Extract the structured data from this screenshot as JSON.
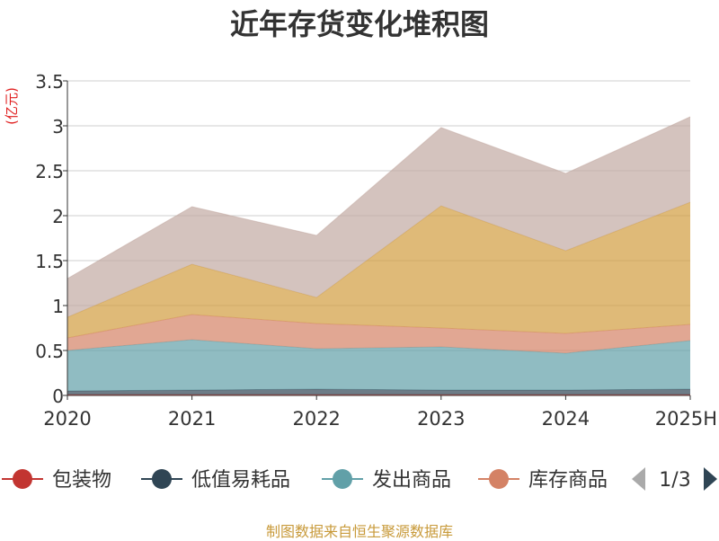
{
  "chart_data": {
    "type": "area",
    "stacked": true,
    "title": "近年存货变化堆积图",
    "unit_label": "(亿元)",
    "categories": [
      "2020",
      "2021",
      "2022",
      "2023",
      "2024",
      "2025H"
    ],
    "ylim": [
      0,
      3.5
    ],
    "yticks": [
      "0",
      "0.5",
      "1",
      "1.5",
      "2",
      "2.5",
      "3",
      "3.5"
    ],
    "grid": true,
    "series": [
      {
        "name": "包装物",
        "color": "#c23531",
        "values": [
          0.01,
          0.01,
          0.01,
          0.01,
          0.01,
          0.01
        ]
      },
      {
        "name": "低值易耗品",
        "color": "#2f4554",
        "values": [
          0.04,
          0.05,
          0.06,
          0.05,
          0.05,
          0.06
        ]
      },
      {
        "name": "发出商品",
        "color": "#61a0a8",
        "values": [
          0.45,
          0.56,
          0.45,
          0.48,
          0.41,
          0.54
        ]
      },
      {
        "name": "库存商品",
        "color": "#d48265",
        "values": [
          0.14,
          0.28,
          0.28,
          0.21,
          0.22,
          0.18
        ]
      },
      {
        "name": "",
        "color": "#d19d3f",
        "values": [
          0.23,
          0.56,
          0.29,
          1.36,
          0.92,
          1.36
        ]
      },
      {
        "name": "",
        "color": "#c2aaa3",
        "values": [
          0.43,
          0.64,
          0.69,
          0.87,
          0.86,
          0.95
        ]
      }
    ],
    "legend": {
      "placement": "bottom",
      "visible_series": [
        "包装物",
        "低值易耗品",
        "发出商品",
        "库存商品"
      ],
      "page": "1/3"
    }
  },
  "footer": {
    "source": "制图数据来自恒生聚源数据库"
  }
}
